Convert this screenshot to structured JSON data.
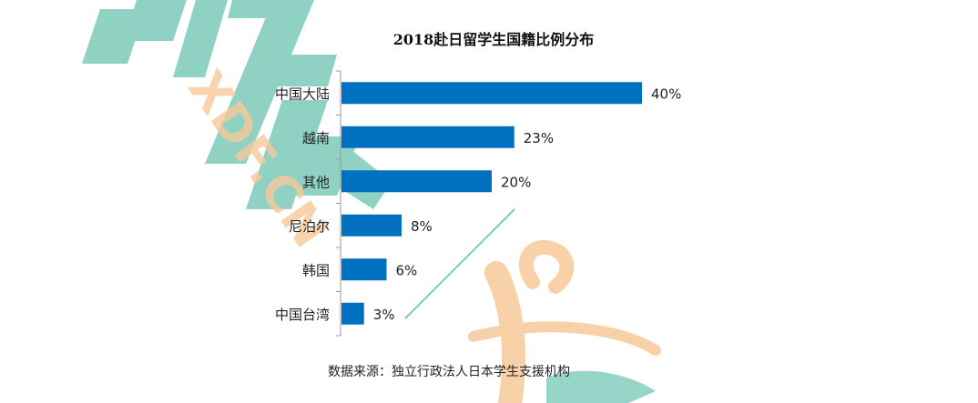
{
  "chart_data": {
    "type": "bar",
    "orientation": "horizontal",
    "title": "2018赴日留学生国籍比例分布",
    "categories": [
      "中国大陆",
      "越南",
      "其他",
      "尼泊尔",
      "韩国",
      "中国台湾"
    ],
    "values": [
      40,
      23,
      20,
      8,
      6,
      3
    ],
    "value_labels": [
      "40%",
      "23%",
      "20%",
      "8%",
      "6%",
      "3%"
    ],
    "unit": "%",
    "xlim": [
      0,
      40
    ],
    "grid": false,
    "bar_color": "#0070c0"
  },
  "source": "数据来源：独立行政法人日本学生支援机构",
  "watermark": {
    "text": "XDF.CN",
    "colors": {
      "teal": "#7ccbb9",
      "orange": "#f7c99a"
    }
  }
}
